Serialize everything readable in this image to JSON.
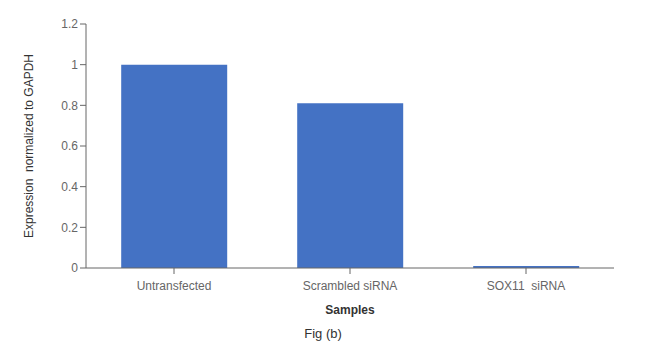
{
  "chart_data": {
    "type": "bar",
    "title": "Fig (b)",
    "categories": [
      "Untransfected",
      "Scrambled siRNA",
      "SOX11  siRNA"
    ],
    "values": [
      1.0,
      0.81,
      0.01
    ],
    "color": "#4472C4",
    "xlabel": "Samples",
    "ylabel": "Expression  normalized to GAPDH",
    "ylim": [
      0,
      1.2
    ],
    "yticks": [
      0,
      0.2,
      0.4,
      0.6,
      0.8,
      1,
      1.2
    ],
    "grid": false
  }
}
